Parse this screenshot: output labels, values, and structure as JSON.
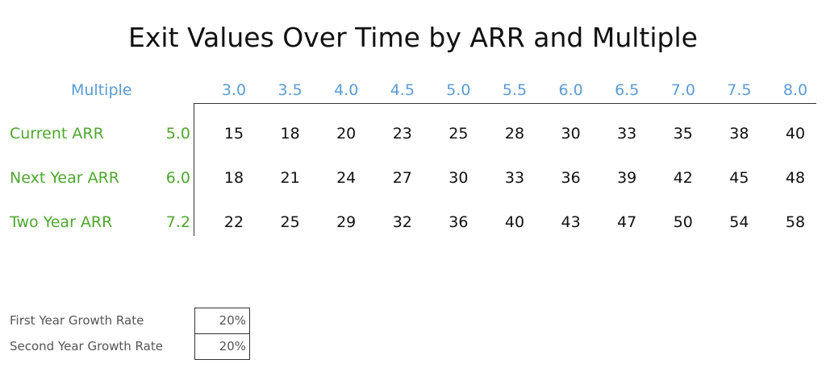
{
  "title": "Exit Values Over Time by ARR and Multiple",
  "table": {
    "header_label": "Multiple",
    "multiples": [
      "3.0",
      "3.5",
      "4.0",
      "4.5",
      "5.0",
      "5.5",
      "6.0",
      "6.5",
      "7.0",
      "7.5",
      "8.0"
    ],
    "rows": [
      {
        "label": "Current ARR",
        "arr": "5.0",
        "values": [
          15,
          18,
          20,
          23,
          25,
          28,
          30,
          33,
          35,
          38,
          40
        ]
      },
      {
        "label": "Next Year ARR",
        "arr": "6.0",
        "values": [
          18,
          21,
          24,
          27,
          30,
          33,
          36,
          39,
          42,
          45,
          48
        ]
      },
      {
        "label": "Two Year ARR",
        "arr": "7.2",
        "values": [
          22,
          25,
          29,
          32,
          36,
          40,
          43,
          47,
          50,
          54,
          58
        ]
      }
    ]
  },
  "inputs": [
    {
      "label": "First Year Growth Rate",
      "value": "20%"
    },
    {
      "label": "Second Year Growth Rate",
      "value": "20%"
    }
  ]
}
